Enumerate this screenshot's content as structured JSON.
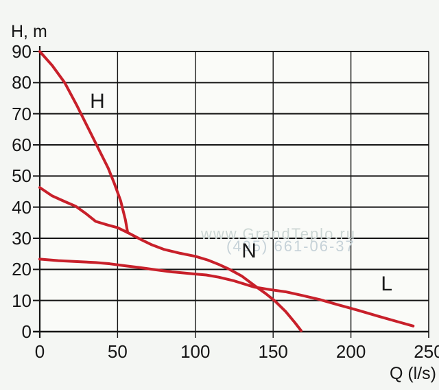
{
  "watermark": {
    "line1": "www.GrandTeplo.ru",
    "line2": "(495) 661-06-37"
  },
  "chart_data": {
    "type": "line",
    "title": "",
    "xlabel": "Q (l/s)",
    "ylabel": "H, m",
    "xlim": [
      0,
      250
    ],
    "ylim": [
      0,
      90
    ],
    "xticks": [
      0,
      50,
      100,
      150,
      200,
      250
    ],
    "yticks": [
      0,
      10,
      20,
      30,
      40,
      50,
      60,
      70,
      80,
      90
    ],
    "grid": true,
    "legend_position": "inline-labels",
    "line_color": "#c8202a",
    "grid_color": "#141414",
    "series": [
      {
        "name": "H",
        "label_pos": [
          37,
          74
        ],
        "points": [
          [
            0,
            90
          ],
          [
            8,
            85.5
          ],
          [
            16,
            80
          ],
          [
            24,
            72.5
          ],
          [
            31,
            65.5
          ],
          [
            36,
            60.5
          ],
          [
            40,
            56.5
          ],
          [
            44,
            52.5
          ],
          [
            48,
            47.5
          ],
          [
            52,
            42
          ],
          [
            55,
            36
          ],
          [
            56.5,
            31.8
          ]
        ]
      },
      {
        "name": "N",
        "label_pos": [
          134.5,
          25.8
        ],
        "points": [
          [
            0,
            46.3
          ],
          [
            8,
            43.6
          ],
          [
            16,
            41.8
          ],
          [
            23,
            40.3
          ],
          [
            30,
            37.8
          ],
          [
            36,
            35.4
          ],
          [
            44,
            34.2
          ],
          [
            50,
            33.4
          ],
          [
            57,
            31.7
          ],
          [
            65,
            29.6
          ],
          [
            72,
            27.9
          ],
          [
            80,
            26.4
          ],
          [
            90,
            25.2
          ],
          [
            100,
            24.2
          ],
          [
            108,
            23
          ],
          [
            115,
            21.6
          ],
          [
            122,
            20
          ],
          [
            130,
            17.8
          ],
          [
            138,
            14.8
          ],
          [
            145,
            12.3
          ],
          [
            151,
            9.9
          ],
          [
            158,
            6.5
          ],
          [
            164,
            2.9
          ],
          [
            168,
            0.3
          ]
        ]
      },
      {
        "name": "L",
        "label_pos": [
          223,
          15.2
        ],
        "points": [
          [
            0,
            23.3
          ],
          [
            12,
            22.8
          ],
          [
            24,
            22.5
          ],
          [
            36,
            22.2
          ],
          [
            45,
            21.8
          ],
          [
            54,
            21.2
          ],
          [
            64,
            20.6
          ],
          [
            74,
            19.9
          ],
          [
            85,
            19.2
          ],
          [
            100,
            18.5
          ],
          [
            107,
            18.2
          ],
          [
            115,
            17.5
          ],
          [
            125,
            16.3
          ],
          [
            138,
            14.3
          ],
          [
            148,
            13.5
          ],
          [
            158,
            12.8
          ],
          [
            168,
            11.7
          ],
          [
            180,
            10.3
          ],
          [
            192,
            8.6
          ],
          [
            205,
            6.8
          ],
          [
            218,
            4.9
          ],
          [
            230,
            3.2
          ],
          [
            240,
            1.8
          ]
        ]
      }
    ]
  }
}
